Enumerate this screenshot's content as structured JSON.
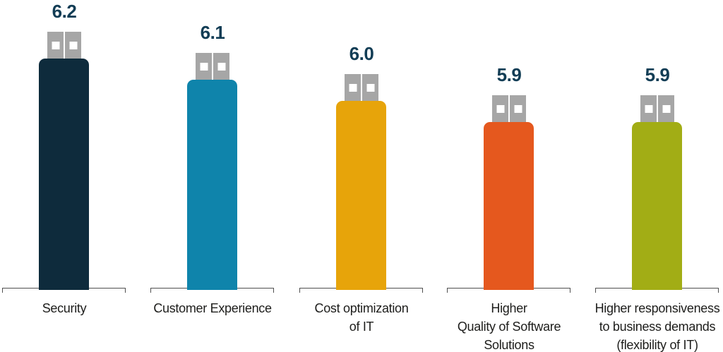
{
  "chart_data": {
    "type": "bar",
    "title": "",
    "xlabel": "",
    "ylabel": "",
    "categories": [
      "Security",
      "Customer Experience",
      "Cost optimization of IT",
      "Higher Quality of Software Solutions",
      "Higher responsiveness to business demands (flexibility of IT)"
    ],
    "values": [
      6.2,
      6.1,
      6.0,
      5.9,
      5.9
    ],
    "value_labels_position": "above",
    "grid": false,
    "legend": false,
    "bar_style": "usb-stick",
    "bars": [
      {
        "value": 6.2,
        "value_label": "6.2",
        "color": "#0e2b3c",
        "label_lines": [
          "Security"
        ]
      },
      {
        "value": 6.1,
        "value_label": "6.1",
        "color": "#0f84ab",
        "label_lines": [
          "Customer Experience"
        ]
      },
      {
        "value": 6.0,
        "value_label": "6.0",
        "color": "#e7a40a",
        "label_lines": [
          "Cost optimization",
          "of IT"
        ]
      },
      {
        "value": 5.9,
        "value_label": "5.9",
        "color": "#e5581e",
        "label_lines": [
          "Higher",
          "Quality of Software",
          "Solutions"
        ]
      },
      {
        "value": 5.9,
        "value_label": "5.9",
        "color": "#a2ad15",
        "label_lines": [
          "Higher responsiveness",
          "to business demands",
          "(flexibility of IT)"
        ]
      }
    ],
    "colors": {
      "value_text": "#123d55",
      "label_text": "#1d1d1b",
      "connector_gray": "#a6a6a6",
      "connector_pin": "#ffffff",
      "bracket_line": "#4f4f4f",
      "background": "#ffffff"
    }
  }
}
